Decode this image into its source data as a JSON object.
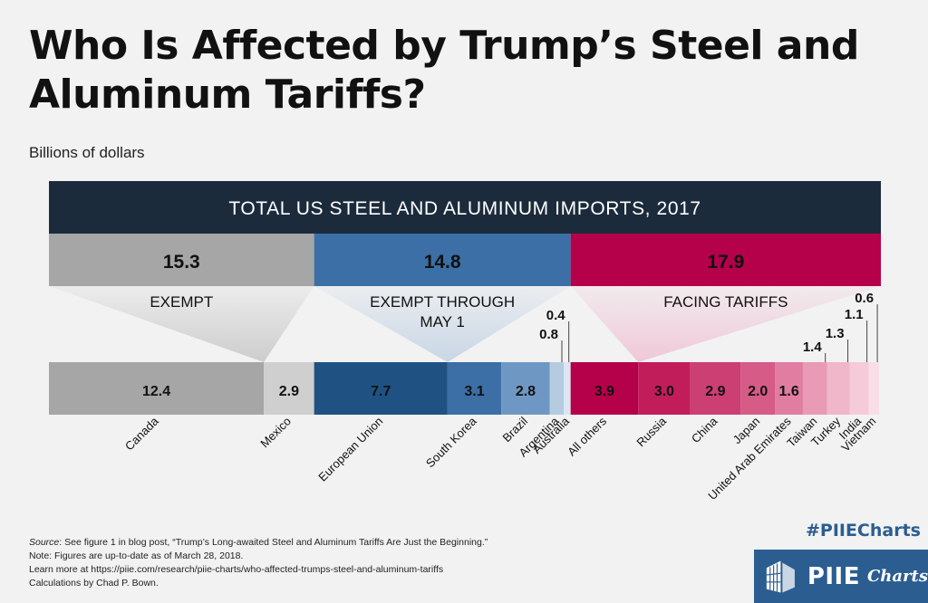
{
  "title": "Who Is Affected by Trump’s Steel and Aluminum Tariffs?",
  "subtitle": "Billions of dollars",
  "chart_data": {
    "type": "bar",
    "title": "TOTAL US STEEL AND ALUMINUM IMPORTS, 2017",
    "groups": [
      {
        "label": "EXEMPT",
        "total_label": "15.3",
        "total": 15.3,
        "color": "#a6a6a6",
        "tri_color": "#c9c9c9"
      },
      {
        "label": "EXEMPT THROUGH MAY 1",
        "label_lines": [
          "EXEMPT THROUGH",
          "MAY 1"
        ],
        "total_label": "14.8",
        "total": 14.8,
        "color": "#3b6fa5",
        "tri_color": "#c4d3e4"
      },
      {
        "label": "FACING TARIFFS",
        "total_label": "17.9",
        "total": 17.9,
        "color": "#b5004a",
        "tri_color": "#efc3d4"
      }
    ],
    "categories": [
      "Canada",
      "Mexico",
      "European Union",
      "South Korea",
      "Brazil",
      "Argentina",
      "Australia",
      "All others",
      "Russia",
      "China",
      "Japan",
      "United Arab Emirates",
      "Taiwan",
      "Turkey",
      "India",
      "Vietnam"
    ],
    "values": [
      12.4,
      2.9,
      7.7,
      3.1,
      2.8,
      0.8,
      0.4,
      3.9,
      3.0,
      2.9,
      2.0,
      1.6,
      1.4,
      1.3,
      1.1,
      0.6
    ],
    "value_labels": [
      "12.4",
      "2.9",
      "7.7",
      "3.1",
      "2.8",
      "0.8",
      "0.4",
      "3.9",
      "3.0",
      "2.9",
      "2.0",
      "1.6",
      "1.4",
      "1.3",
      "1.1",
      "0.6"
    ],
    "group_index": [
      0,
      0,
      1,
      1,
      1,
      1,
      1,
      2,
      2,
      2,
      2,
      2,
      2,
      2,
      2,
      2
    ],
    "colors": [
      "#a6a6a6",
      "#cfcfcf",
      "#1f5283",
      "#3b6fa5",
      "#6e98c3",
      "#b5cbe0",
      "#dbe6f1",
      "#b5004a",
      "#c21d5b",
      "#cc3f72",
      "#d65b87",
      "#e07da0",
      "#e99ab5",
      "#f0b6ca",
      "#f5cbda",
      "#f9dee7"
    ]
  },
  "footer": {
    "source_label": "Source",
    "source_text": ": See figure 1 in blog post, “Trump’s Long-awaited Steel and Aluminum Tariffs Are Just the Beginning.”",
    "note": "Note: Figures are up-to-date as of March 28, 2018.",
    "learn_more": "Learn more at https://piie.com/research/piie-charts/who-affected-trumps-steel-and-aluminum-tariffs",
    "credit": "Calculations by Chad P. Bown."
  },
  "hashtag": "#PIIECharts",
  "logo": {
    "name": "PIIE",
    "sub": "Charts"
  }
}
